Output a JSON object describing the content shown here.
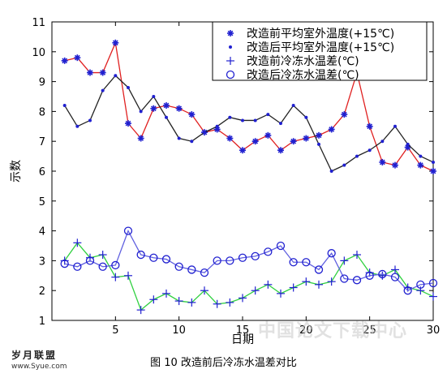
{
  "figure": {
    "caption": "图 10  改造前后冷冻水温差对比",
    "watermark_logo": "岁月联盟",
    "watermark_url": "www.Syue.com",
    "watermark_site": "中国论文下载中心"
  },
  "chart_data": {
    "type": "line",
    "xlabel": "日期",
    "ylabel": "示数",
    "xlim": [
      0,
      30
    ],
    "ylim": [
      1,
      11
    ],
    "xticks": [
      5,
      10,
      15,
      20,
      25,
      30
    ],
    "yticks": [
      1,
      2,
      3,
      4,
      5,
      6,
      7,
      8,
      9,
      10,
      11
    ],
    "grid": false,
    "legend_position": "top-right",
    "x": [
      1,
      2,
      3,
      4,
      5,
      6,
      7,
      8,
      9,
      10,
      11,
      12,
      13,
      14,
      15,
      16,
      17,
      18,
      19,
      20,
      21,
      22,
      23,
      24,
      25,
      26,
      27,
      28,
      29,
      30
    ],
    "series": [
      {
        "name": "改造前平均室外温度(+15℃)",
        "color": "#e02020",
        "marker": "asterisk",
        "marker_color": "#2020d0",
        "values": [
          9.7,
          9.8,
          9.3,
          9.3,
          10.3,
          7.6,
          7.1,
          8.1,
          8.2,
          8.1,
          7.9,
          7.3,
          7.4,
          7.1,
          6.7,
          7.0,
          7.2,
          6.7,
          7.0,
          7.1,
          7.2,
          7.4,
          7.9,
          9.3,
          7.5,
          6.3,
          6.2,
          6.8,
          6.2,
          6.0
        ]
      },
      {
        "name": "改造后平均室外温度(+15℃)",
        "color": "#222222",
        "marker": "dot",
        "marker_color": "#2020d0",
        "values": [
          8.2,
          7.5,
          7.7,
          8.7,
          9.2,
          8.8,
          8.0,
          8.5,
          7.8,
          7.1,
          7.0,
          7.3,
          7.5,
          7.8,
          7.7,
          7.7,
          7.9,
          7.6,
          8.2,
          7.8,
          6.9,
          6.0,
          6.2,
          6.5,
          6.7,
          7.0,
          7.5,
          6.9,
          6.5,
          6.3
        ]
      },
      {
        "name": "改造前冷冻水温差(℃)",
        "color": "#30d040",
        "marker": "plus",
        "marker_color": "#2020d0",
        "values": [
          3.0,
          3.6,
          3.1,
          3.2,
          2.45,
          2.5,
          1.35,
          1.7,
          1.9,
          1.65,
          1.6,
          2.0,
          1.55,
          1.6,
          1.75,
          2.0,
          2.2,
          1.9,
          2.1,
          2.3,
          2.2,
          2.3,
          3.0,
          3.2,
          2.6,
          2.5,
          2.7,
          2.1,
          2.0,
          1.8
        ]
      },
      {
        "name": "改造后冷冻水温差(℃)",
        "color": "#6060e0",
        "marker": "circle",
        "marker_color": "#2020d0",
        "values": [
          2.9,
          2.8,
          3.0,
          2.8,
          2.85,
          4.0,
          3.2,
          3.1,
          3.05,
          2.8,
          2.7,
          2.6,
          3.0,
          3.0,
          3.1,
          3.15,
          3.3,
          3.5,
          2.95,
          2.95,
          2.7,
          3.25,
          2.4,
          2.35,
          2.5,
          2.55,
          2.45,
          2.0,
          2.2,
          2.25
        ]
      }
    ]
  }
}
